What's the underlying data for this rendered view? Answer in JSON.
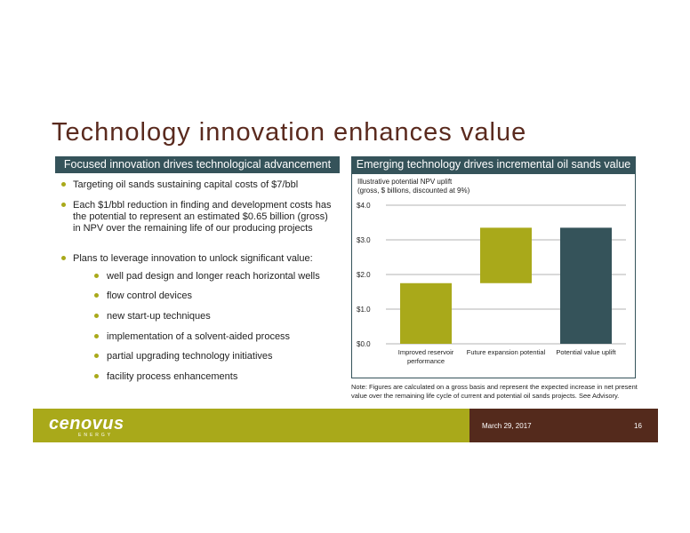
{
  "title": "Technology innovation enhances value",
  "left_panel": {
    "header": "Focused innovation drives technological advancement",
    "bullets": [
      "Targeting oil sands sustaining capital costs of $7/bbl",
      "Each $1/bbl reduction in finding and development costs has the potential to represent an estimated $0.65 billion (gross) in NPV over the remaining life of our producing projects",
      "Plans to leverage innovation to unlock significant value:"
    ],
    "sub_bullets": [
      "well pad design and longer reach horizontal wells",
      "flow control devices",
      "new start-up techniques",
      "implementation of a solvent-aided process",
      "partial upgrading technology initiatives",
      "facility process enhancements"
    ]
  },
  "right_panel": {
    "header": "Emerging technology drives incremental oil sands value",
    "note": "Note: Figures are calculated on a gross basis and represent the expected increase in net present value over the remaining life cycle of current and potential oil sands projects. See Advisory."
  },
  "chart_data": {
    "type": "bar",
    "title": "Illustrative potential NPV uplift",
    "subtitle": "(gross, $ billions, discounted at 9%)",
    "categories": [
      "Improved reservoir performance",
      "Future expansion potential",
      "Potential value uplift"
    ],
    "category_lines": [
      [
        "Improved reservoir",
        "performance"
      ],
      [
        "Future expansion potential"
      ],
      [
        "Potential value uplift"
      ]
    ],
    "bars": [
      {
        "base": 0.0,
        "top": 1.75,
        "color": "#a9a91a"
      },
      {
        "base": 1.75,
        "top": 3.35,
        "color": "#a9a91a"
      },
      {
        "base": 0.0,
        "top": 3.35,
        "color": "#35535a"
      }
    ],
    "ylim": [
      0,
      4
    ],
    "yticks": [
      0,
      1,
      2,
      3,
      4
    ],
    "ytick_labels": [
      "$0.0",
      "$1.0",
      "$2.0",
      "$3.0",
      "$4.0"
    ],
    "grid": true
  },
  "footer": {
    "logo": "cenovus",
    "logo_sub": "ENERGY",
    "date": "March 29, 2017",
    "page": "16"
  }
}
